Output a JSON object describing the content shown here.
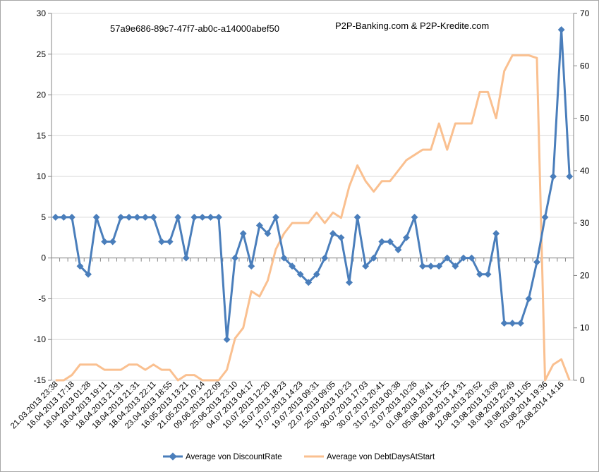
{
  "chart_data": {
    "type": "line",
    "grid": true,
    "legend_position": "bottom",
    "annotations": [
      "57a9e686-89c7-47f7-ab0c-a14000abef50",
      "P2P-Banking.com & P2P-Kredite.com"
    ],
    "y_left": {
      "min": -15,
      "max": 30,
      "step": 5
    },
    "y_right": {
      "min": 0,
      "max": 70,
      "step": 10
    },
    "x_tick_labels": [
      "21.03.2013 23:38",
      "16.04.2013 17:18",
      "18.04.2013 01:28",
      "18.04.2013 19:11",
      "18.04.2013 21:31",
      "18.04.2013 21:31",
      "18.04.2013 22:11",
      "23.04.2013 18:55",
      "16.05.2013 13:21",
      "21.05.2013 10:14",
      "09.06.2013 22:09",
      "25.06.2013 23:10",
      "04.07.2013 04:17",
      "10.07.2013 12:20",
      "15.07.2013 18:23",
      "17.07.2013 14:23",
      "19.07.2013 09:31",
      "22.07.2013 09:05",
      "25.07.2013 10:23",
      "30.07.2013 17:03",
      "30.07.2013 20:41",
      "31.07.2013 00:38",
      "31.07.2013 10:26",
      "01.08.2013 19:41",
      "05.08.2013 15:25",
      "06.08.2013 14:31",
      "12.08.2013 20:52",
      "13.08.2013 13:09",
      "18.08.2013 22:49",
      "19.08.2013 11:05",
      "03.08.2014 19:36",
      "23.08.2014 14:16"
    ],
    "series": [
      {
        "name": "Average von DiscountRate",
        "axis": "left",
        "color": "#4a7ebb",
        "values": [
          5,
          5,
          5,
          -1,
          -2,
          5,
          2,
          2,
          5,
          5,
          5,
          5,
          5,
          2,
          2,
          5,
          0,
          5,
          5,
          5,
          5,
          -10,
          0,
          3,
          -1,
          4,
          3,
          5,
          0,
          -1,
          -2,
          -3,
          -2,
          0,
          3,
          2.5,
          -3,
          5,
          -1,
          0,
          2,
          2,
          1,
          2.5,
          5,
          -1,
          -1,
          -1,
          0,
          -1,
          0,
          0,
          -2,
          -2,
          3,
          -8,
          -8,
          -8,
          -5,
          -0.5,
          5,
          10,
          28,
          10
        ]
      },
      {
        "name": "Average von DebtDaysAtStart",
        "axis": "right",
        "color": "#fac090",
        "values": [
          0,
          0,
          1,
          3,
          3,
          3,
          2,
          2,
          2,
          3,
          3,
          2,
          3,
          2,
          2,
          0,
          1,
          1,
          0,
          0,
          0,
          2,
          8,
          10,
          17,
          16,
          19,
          25,
          28,
          30,
          30,
          30,
          32,
          30,
          32,
          31,
          37,
          41,
          38,
          36,
          38,
          38,
          40,
          42,
          43,
          44,
          44,
          49,
          44,
          49,
          49,
          49,
          55,
          55,
          50,
          59,
          62,
          62,
          62,
          61.5,
          0,
          3,
          4,
          0
        ]
      }
    ]
  }
}
